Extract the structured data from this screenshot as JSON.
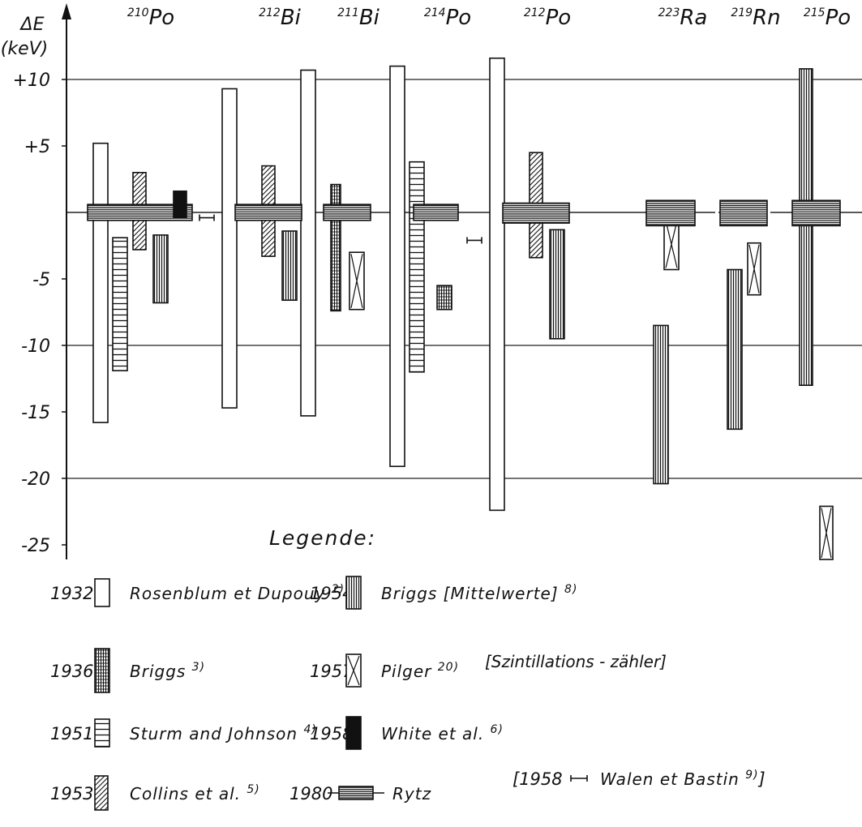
{
  "chart_data": {
    "type": "bar",
    "ylabel": "ΔE",
    "yunit": "(keV)",
    "ylim": [
      -26,
      13
    ],
    "yticks": [
      {
        "value": 10,
        "label": "+10"
      },
      {
        "value": 5,
        "label": "+5"
      },
      {
        "value": -5,
        "label": "-5"
      },
      {
        "value": -10,
        "label": "-10"
      },
      {
        "value": -15,
        "label": "-15"
      },
      {
        "value": -20,
        "label": "-20"
      },
      {
        "value": -25,
        "label": "-25"
      }
    ],
    "grid_lines": [
      10,
      0,
      -10,
      -20
    ],
    "nuclides": [
      {
        "mass": "210",
        "symbol": "Po"
      },
      {
        "mass": "212",
        "symbol": "Bi"
      },
      {
        "mass": "211",
        "symbol": "Bi"
      },
      {
        "mass": "214",
        "symbol": "Po"
      },
      {
        "mass": "212",
        "symbol": "Po"
      },
      {
        "mass": "223",
        "symbol": "Ra"
      },
      {
        "mass": "219",
        "symbol": "Rn"
      },
      {
        "mass": "215",
        "symbol": "Po"
      }
    ],
    "series": [
      {
        "key": "rosenblum",
        "year": "1932",
        "name": "Rosenblum et Dupouy",
        "ref": "2)",
        "pattern": "open",
        "ranges": [
          {
            "n": 0,
            "low": -15.8,
            "high": 5.2
          },
          {
            "n": 1,
            "low": -14.7,
            "high": 9.3
          },
          {
            "n": 2,
            "low": -15.3,
            "high": 10.7
          },
          {
            "n": 3,
            "low": -19.1,
            "high": 11.0
          },
          {
            "n": 4,
            "low": -22.4,
            "high": 11.6
          }
        ]
      },
      {
        "key": "briggs1936",
        "year": "1936",
        "name": "Briggs",
        "ref": "3)",
        "pattern": "grid",
        "ranges": [
          {
            "n": 2,
            "low": -7.4,
            "high": 2.1
          },
          {
            "n": 3,
            "low": -7.3,
            "high": -5.5
          }
        ]
      },
      {
        "key": "sturm",
        "year": "1951",
        "name": "Sturm and Johnson",
        "ref": "4)",
        "pattern": "horizontal",
        "ranges": [
          {
            "n": 0,
            "low": -11.9,
            "high": -1.9
          },
          {
            "n": 3,
            "low": -12.0,
            "high": 3.8
          }
        ]
      },
      {
        "key": "collins",
        "year": "1953",
        "name": "Collins et al.",
        "ref": "5)",
        "pattern": "diagonal",
        "ranges": [
          {
            "n": 0,
            "low": -2.8,
            "high": 3.0
          },
          {
            "n": 1,
            "low": -3.3,
            "high": 3.5
          },
          {
            "n": 4,
            "low": -3.4,
            "high": 4.5
          }
        ]
      },
      {
        "key": "briggs1954",
        "year": "1954",
        "name": "Briggs [Mittelwerte]",
        "ref": "8)",
        "pattern": "vertical",
        "ranges": [
          {
            "n": 0,
            "low": -6.8,
            "high": -1.7
          },
          {
            "n": 1,
            "low": -6.6,
            "high": -1.4
          },
          {
            "n": 4,
            "low": -9.5,
            "high": -1.3
          },
          {
            "n": 5,
            "low": -20.4,
            "high": -8.5
          },
          {
            "n": 6,
            "low": -16.3,
            "high": -4.3
          },
          {
            "n": 7,
            "low": -13.0,
            "high": 10.8
          }
        ]
      },
      {
        "key": "pilger",
        "year": "1957",
        "name": "Pilger",
        "ref": "20)",
        "note": "[Szintillations - zähler]",
        "pattern": "cross",
        "ranges": [
          {
            "n": 2,
            "low": -7.3,
            "high": -3.0
          },
          {
            "n": 5,
            "low": -4.3,
            "high": -0.5
          },
          {
            "n": 6,
            "low": -6.2,
            "high": -2.3
          },
          {
            "n": 7,
            "low": -26.1,
            "high": -22.1
          }
        ]
      },
      {
        "key": "white",
        "year": "1958",
        "name": "White et al.",
        "ref": "6)",
        "pattern": "solid",
        "ranges": [
          {
            "n": 0,
            "low": -0.4,
            "high": 1.6
          }
        ]
      },
      {
        "key": "walen",
        "year": "1958",
        "name": "Walen et Bastin",
        "ref": "9)",
        "pattern": "errorbar",
        "ranges": [
          {
            "n": 0,
            "low": -0.6,
            "high": -0.2
          },
          {
            "n": 3,
            "low": -2.3,
            "high": -1.9
          }
        ]
      },
      {
        "key": "rytz",
        "year": "1980",
        "name": "Rytz",
        "ref": "",
        "pattern": "box",
        "ranges": [
          {
            "n": 0,
            "low": -0.6,
            "high": 0.6
          },
          {
            "n": 1,
            "low": -0.6,
            "high": 0.6
          },
          {
            "n": 2,
            "low": -0.6,
            "high": 0.6
          },
          {
            "n": 3,
            "low": -0.6,
            "high": 0.6
          },
          {
            "n": 4,
            "low": -0.8,
            "high": 0.7
          },
          {
            "n": 5,
            "low": -1.0,
            "high": 0.9
          },
          {
            "n": 6,
            "low": -1.0,
            "high": 0.9
          },
          {
            "n": 7,
            "low": -1.0,
            "high": 0.9
          }
        ]
      }
    ],
    "legend_title": "Legende:",
    "legend_placement": "bottom"
  }
}
